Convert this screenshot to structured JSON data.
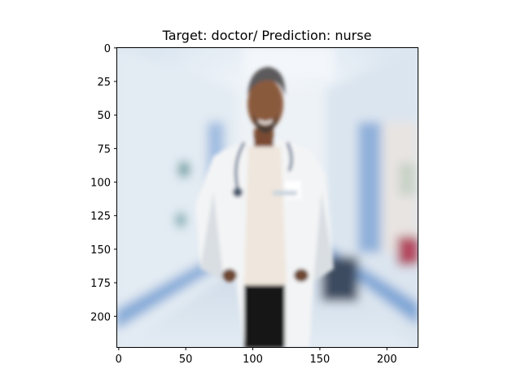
{
  "figure": {
    "title": "Target: doctor/ Prediction: nurse"
  },
  "chart_data": {
    "type": "image",
    "title": "Target: doctor/ Prediction: nurse",
    "xlabel": "",
    "ylabel": "",
    "xlim": [
      0,
      224
    ],
    "ylim": [
      224,
      0
    ],
    "x_ticks": [
      0,
      50,
      100,
      150,
      200
    ],
    "y_ticks": [
      0,
      25,
      50,
      75,
      100,
      125,
      150,
      175,
      200
    ],
    "image_content": "photo",
    "colors": {
      "corridor": "#d8e3ee",
      "corridor_light": "#eef3f8",
      "blue_stripe": "#7fa6d6",
      "coat": "#f4f5f6",
      "coat_shadow": "#d6dbe0",
      "shirt": "#f2ebe4",
      "skin": "#8a5a3d",
      "hair": "#555558",
      "trousers": "#151515",
      "stethoscope": "#2f4d7a",
      "axis": "#000000"
    }
  }
}
